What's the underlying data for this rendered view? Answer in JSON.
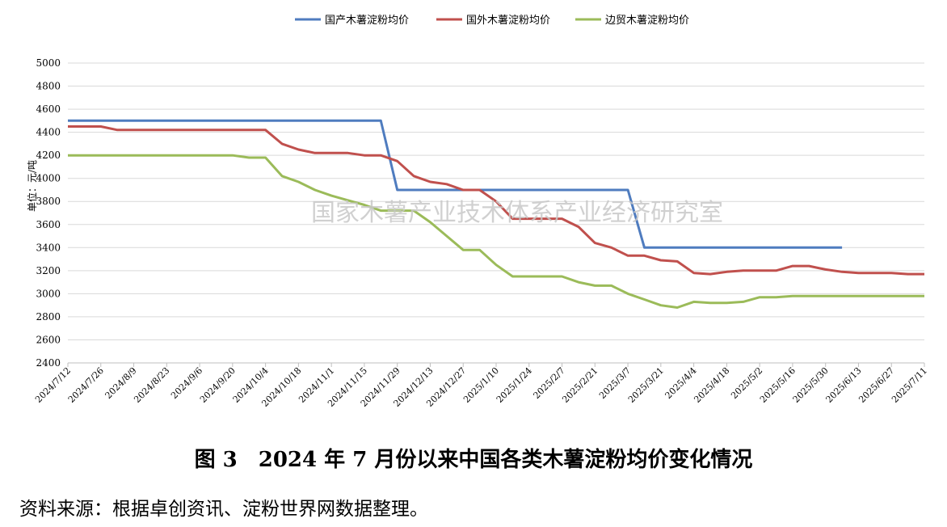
{
  "chart_data": {
    "type": "line",
    "ylabel": "单位：元/吨",
    "ylim": [
      2400,
      5000
    ],
    "ytick_step": 200,
    "grid": true,
    "legend_position": "top",
    "watermark": "国家木薯产业技术体系产业经济研究室",
    "x_tick_labels": [
      "2024/7/12",
      "2024/7/26",
      "2024/8/9",
      "2024/8/23",
      "2024/9/6",
      "2024/9/20",
      "2024/10/4",
      "2024/10/18",
      "2024/11/1",
      "2024/11/15",
      "2024/11/29",
      "2024/12/13",
      "2024/12/27",
      "2025/1/10",
      "2025/1/24",
      "2025/2/7",
      "2025/2/21",
      "2025/3/7",
      "2025/3/21",
      "2025/4/4",
      "2025/4/18",
      "2025/5/2",
      "2025/5/16",
      "2025/5/30",
      "2025/6/13",
      "2025/6/27",
      "2025/7/11"
    ],
    "series": [
      {
        "name": "国产木薯淀粉均价",
        "color": "#4f7cbf",
        "points": [
          [
            "2024/7/12",
            4500
          ],
          [
            "2024/11/22",
            4500
          ],
          [
            "2024/11/29",
            3900
          ],
          [
            "2025/3/7",
            3900
          ],
          [
            "2025/3/14",
            3400
          ],
          [
            "2025/6/6",
            3400
          ]
        ]
      },
      {
        "name": "国外木薯淀粉均价",
        "color": "#c0504d",
        "points": [
          [
            "2024/7/12",
            4450
          ],
          [
            "2024/7/26",
            4450
          ],
          [
            "2024/8/2",
            4420
          ],
          [
            "2024/10/4",
            4420
          ],
          [
            "2024/10/11",
            4300
          ],
          [
            "2024/10/18",
            4250
          ],
          [
            "2024/10/25",
            4220
          ],
          [
            "2024/11/8",
            4220
          ],
          [
            "2024/11/15",
            4200
          ],
          [
            "2024/11/22",
            4200
          ],
          [
            "2024/11/29",
            4150
          ],
          [
            "2024/12/6",
            4020
          ],
          [
            "2024/12/13",
            3970
          ],
          [
            "2024/12/20",
            3950
          ],
          [
            "2024/12/27",
            3900
          ],
          [
            "2025/1/3",
            3900
          ],
          [
            "2025/1/10",
            3800
          ],
          [
            "2025/1/17",
            3650
          ],
          [
            "2025/2/7",
            3650
          ],
          [
            "2025/2/14",
            3580
          ],
          [
            "2025/2/21",
            3440
          ],
          [
            "2025/2/28",
            3400
          ],
          [
            "2025/3/7",
            3330
          ],
          [
            "2025/3/14",
            3330
          ],
          [
            "2025/3/21",
            3290
          ],
          [
            "2025/3/28",
            3280
          ],
          [
            "2025/4/4",
            3180
          ],
          [
            "2025/4/11",
            3170
          ],
          [
            "2025/4/18",
            3190
          ],
          [
            "2025/4/25",
            3200
          ],
          [
            "2025/5/9",
            3200
          ],
          [
            "2025/5/16",
            3240
          ],
          [
            "2025/5/23",
            3240
          ],
          [
            "2025/5/30",
            3210
          ],
          [
            "2025/6/6",
            3190
          ],
          [
            "2025/6/13",
            3180
          ],
          [
            "2025/6/27",
            3180
          ],
          [
            "2025/7/4",
            3170
          ],
          [
            "2025/7/11",
            3170
          ]
        ]
      },
      {
        "name": "边贸木薯淀粉均价",
        "color": "#9bbb59",
        "points": [
          [
            "2024/7/12",
            4200
          ],
          [
            "2024/9/20",
            4200
          ],
          [
            "2024/9/27",
            4180
          ],
          [
            "2024/10/4",
            4180
          ],
          [
            "2024/10/11",
            4020
          ],
          [
            "2024/10/18",
            3970
          ],
          [
            "2024/10/25",
            3900
          ],
          [
            "2024/11/1",
            3850
          ],
          [
            "2024/11/8",
            3810
          ],
          [
            "2024/11/15",
            3770
          ],
          [
            "2024/11/22",
            3720
          ],
          [
            "2024/12/6",
            3720
          ],
          [
            "2024/12/13",
            3620
          ],
          [
            "2024/12/20",
            3500
          ],
          [
            "2024/12/27",
            3380
          ],
          [
            "2025/1/3",
            3380
          ],
          [
            "2025/1/10",
            3250
          ],
          [
            "2025/1/17",
            3150
          ],
          [
            "2025/2/7",
            3150
          ],
          [
            "2025/2/14",
            3100
          ],
          [
            "2025/2/21",
            3070
          ],
          [
            "2025/2/28",
            3070
          ],
          [
            "2025/3/7",
            3000
          ],
          [
            "2025/3/14",
            2950
          ],
          [
            "2025/3/21",
            2900
          ],
          [
            "2025/3/28",
            2880
          ],
          [
            "2025/4/4",
            2930
          ],
          [
            "2025/4/11",
            2920
          ],
          [
            "2025/4/18",
            2920
          ],
          [
            "2025/4/25",
            2930
          ],
          [
            "2025/5/2",
            2970
          ],
          [
            "2025/5/9",
            2970
          ],
          [
            "2025/5/16",
            2980
          ],
          [
            "2025/7/11",
            2980
          ]
        ]
      }
    ]
  },
  "caption": "图 3　2024 年 7 月份以来中国各类木薯淀粉均价变化情况",
  "source": "资料来源：根据卓创资讯、淀粉世界网数据整理。"
}
